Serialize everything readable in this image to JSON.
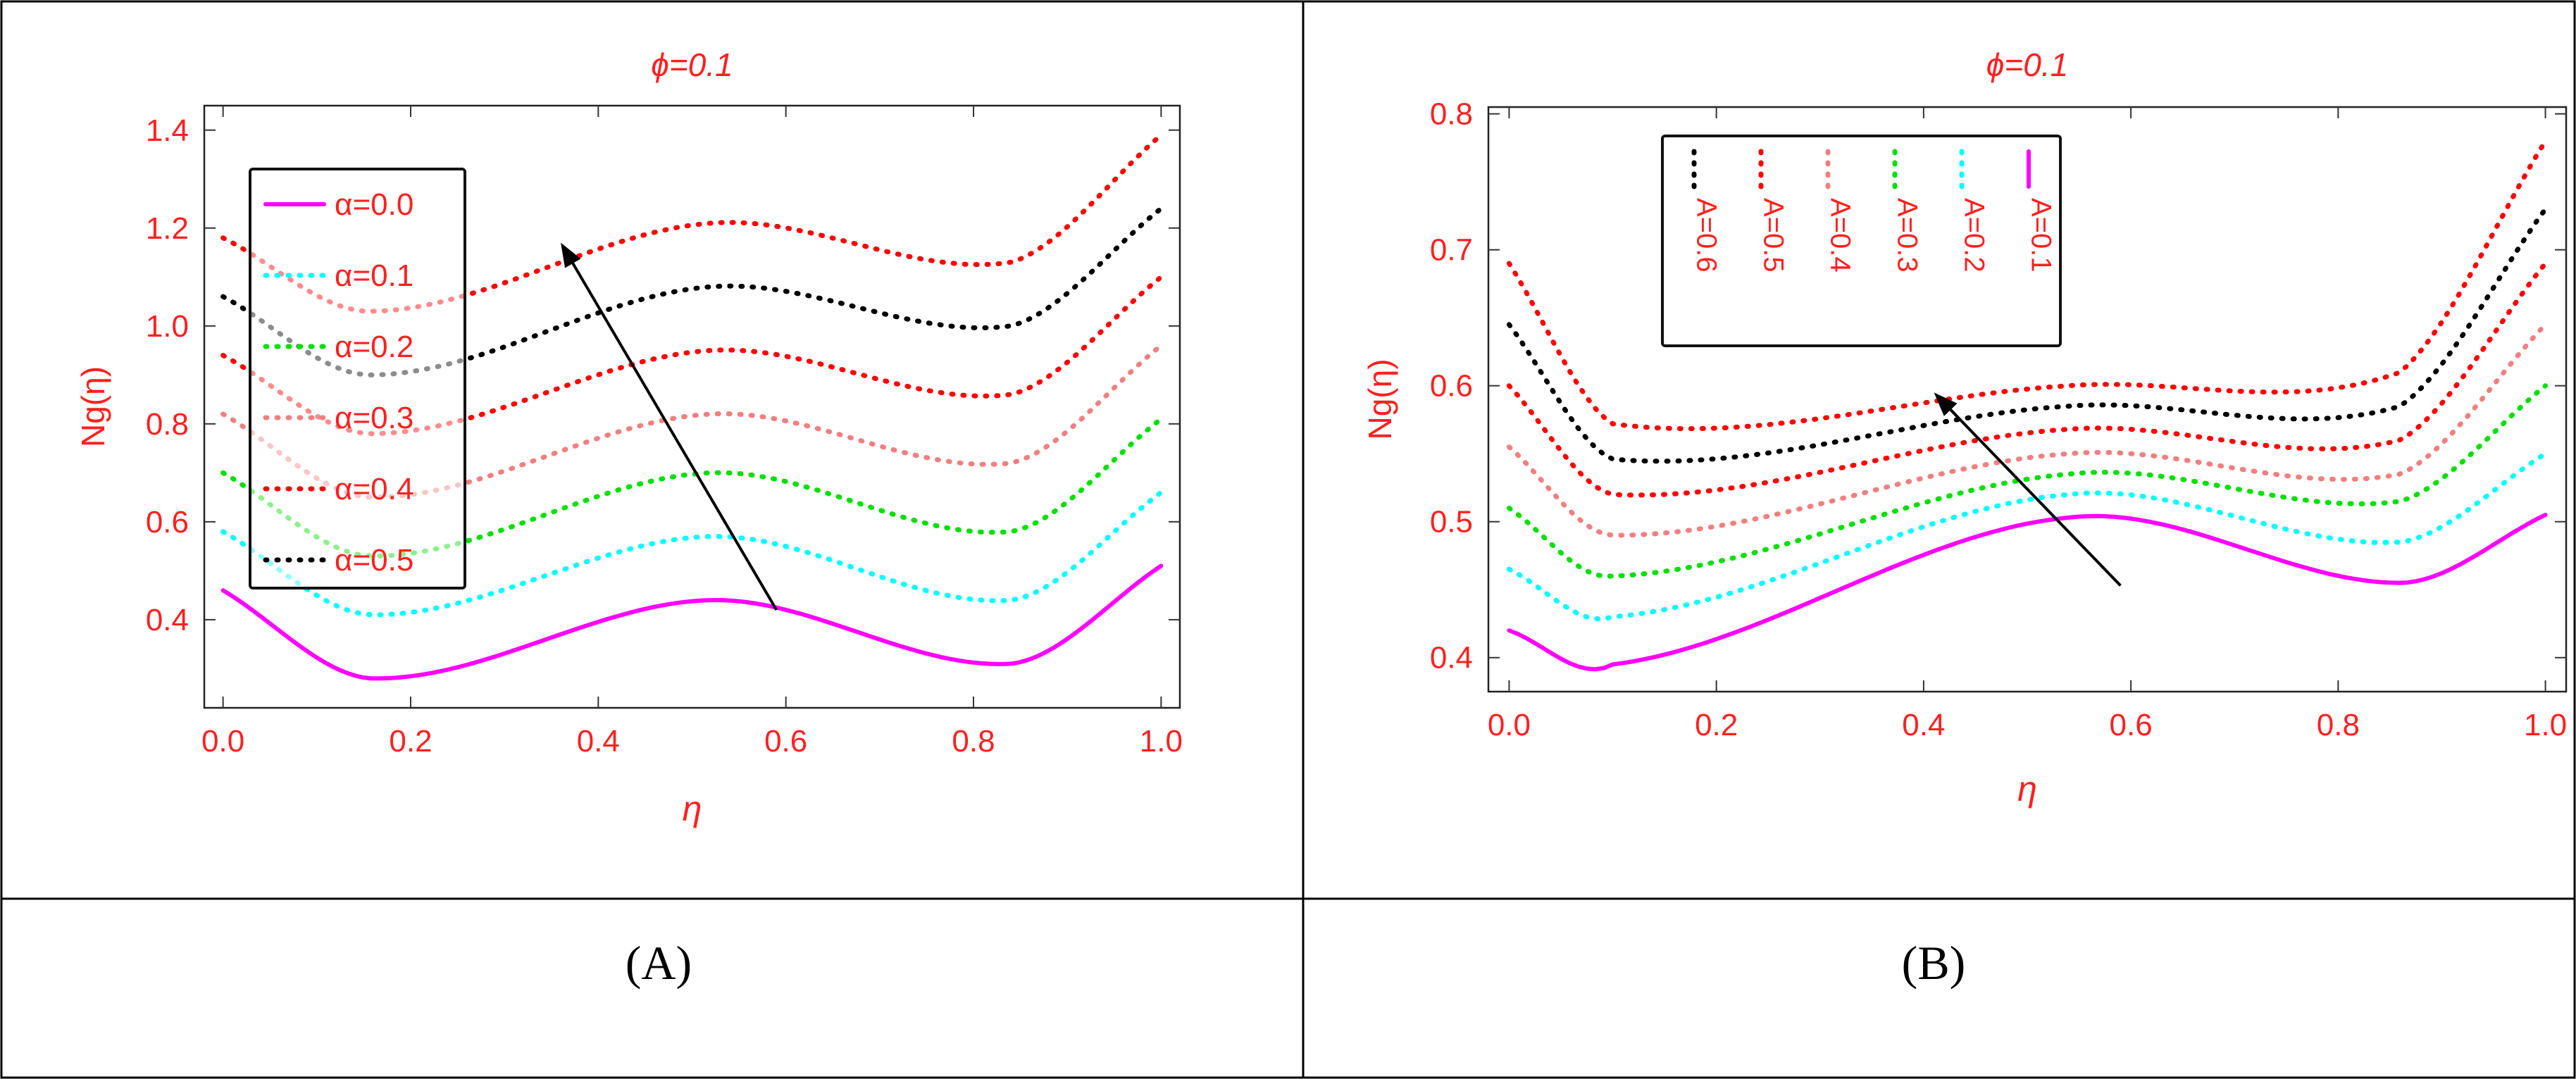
{
  "chart_data": [
    {
      "type": "line",
      "title": "ϕ=0.1",
      "xlabel": "η",
      "ylabel": "Ng(η)",
      "caption": "(A)",
      "xlim": [
        -0.02,
        1.02
      ],
      "ylim": [
        0.22,
        1.45
      ],
      "xticks": [
        "0.0",
        "0.2",
        "0.4",
        "0.6",
        "0.8",
        "1.0"
      ],
      "yticks": [
        "0.4",
        "0.6",
        "0.8",
        "1.0",
        "1.2",
        "1.4"
      ],
      "legend_position": "top-left",
      "legend_orientation": "vertical",
      "x": [
        0.0,
        0.16,
        0.52,
        0.84,
        1.0
      ],
      "series": [
        {
          "name": "α=0.0",
          "color": "#ff00ff",
          "style": "solid",
          "values": [
            0.46,
            0.28,
            0.44,
            0.31,
            0.51
          ]
        },
        {
          "name": "α=0.1",
          "color": "#00ffff",
          "style": "dotted",
          "values": [
            0.58,
            0.41,
            0.57,
            0.44,
            0.66
          ]
        },
        {
          "name": "α=0.2",
          "color": "#00e000",
          "style": "dotted",
          "values": [
            0.7,
            0.53,
            0.7,
            0.58,
            0.81
          ]
        },
        {
          "name": "α=0.3",
          "color": "#f08080",
          "style": "dotted",
          "values": [
            0.82,
            0.65,
            0.82,
            0.72,
            0.96
          ]
        },
        {
          "name": "α=0.4",
          "color": "#ff0000",
          "style": "dotted",
          "values": [
            0.94,
            0.78,
            0.95,
            0.86,
            1.1
          ]
        },
        {
          "name": "α=0.5",
          "color": "#000000",
          "style": "dotted",
          "values": [
            1.06,
            0.9,
            1.08,
            1.0,
            1.24
          ]
        },
        {
          "name": "",
          "color": "#ff0000",
          "style": "dotted",
          "values": [
            1.18,
            1.03,
            1.21,
            1.13,
            1.39
          ]
        }
      ],
      "legend_entries": [
        {
          "label": "α=0.0",
          "color": "#ff00ff",
          "style": "solid"
        },
        {
          "label": "α=0.1",
          "color": "#00ffff",
          "style": "dotted"
        },
        {
          "label": "α=0.2",
          "color": "#00e000",
          "style": "dotted"
        },
        {
          "label": "α=0.3",
          "color": "#f08080",
          "style": "dotted"
        },
        {
          "label": "α=0.4",
          "color": "#ff0000",
          "style": "dotted"
        },
        {
          "label": "α=0.5",
          "color": "#000000",
          "style": "dotted"
        }
      ],
      "arrow": {
        "from": [
          0.59,
          0.42
        ],
        "to": [
          0.36,
          1.17
        ]
      }
    },
    {
      "type": "line",
      "title": "ϕ=0.1",
      "xlabel": "η",
      "ylabel": "Ng(η)",
      "caption": "(B)",
      "xlim": [
        -0.02,
        1.02
      ],
      "ylim": [
        0.375,
        0.805
      ],
      "xticks": [
        "0.0",
        "0.2",
        "0.4",
        "0.6",
        "0.8",
        "1.0"
      ],
      "yticks": [
        "0.4",
        "0.5",
        "0.6",
        "0.7",
        "0.8"
      ],
      "legend_position": "top-center",
      "legend_orientation": "rotated",
      "x": [
        0.0,
        0.1,
        0.54,
        0.86,
        1.0
      ],
      "series": [
        {
          "name": "A=0.1",
          "color": "#ff00ff",
          "style": "solid",
          "values": [
            0.42,
            0.395,
            0.503,
            0.455,
            0.505
          ]
        },
        {
          "name": "A=0.2",
          "color": "#00ffff",
          "style": "dotted",
          "values": [
            0.465,
            0.43,
            0.52,
            0.485,
            0.55
          ]
        },
        {
          "name": "A=0.3",
          "color": "#00e000",
          "style": "dotted",
          "values": [
            0.51,
            0.46,
            0.535,
            0.515,
            0.6
          ]
        },
        {
          "name": "A=0.4",
          "color": "#f08080",
          "style": "dotted",
          "values": [
            0.555,
            0.49,
            0.55,
            0.535,
            0.645
          ]
        },
        {
          "name": "A=0.5",
          "color": "#ff0000",
          "style": "dotted",
          "values": [
            0.6,
            0.52,
            0.568,
            0.56,
            0.69
          ]
        },
        {
          "name": "A=0.6",
          "color": "#000000",
          "style": "dotted",
          "values": [
            0.645,
            0.546,
            0.585,
            0.585,
            0.73
          ]
        },
        {
          "name": "",
          "color": "#ff0000",
          "style": "dotted",
          "values": [
            0.69,
            0.572,
            0.6,
            0.61,
            0.78
          ]
        }
      ],
      "legend_entries": [
        {
          "label": "A=0.6",
          "color": "#000000",
          "style": "dotted"
        },
        {
          "label": "A=0.5",
          "color": "#ff0000",
          "style": "dotted"
        },
        {
          "label": "A=0.4",
          "color": "#f08080",
          "style": "dotted"
        },
        {
          "label": "A=0.3",
          "color": "#00e000",
          "style": "dotted"
        },
        {
          "label": "A=0.2",
          "color": "#00ffff",
          "style": "dotted"
        },
        {
          "label": "A=0.1",
          "color": "#ff00ff",
          "style": "solid"
        }
      ],
      "arrow": {
        "from": [
          0.59,
          0.453
        ],
        "to": [
          0.41,
          0.595
        ]
      }
    }
  ]
}
